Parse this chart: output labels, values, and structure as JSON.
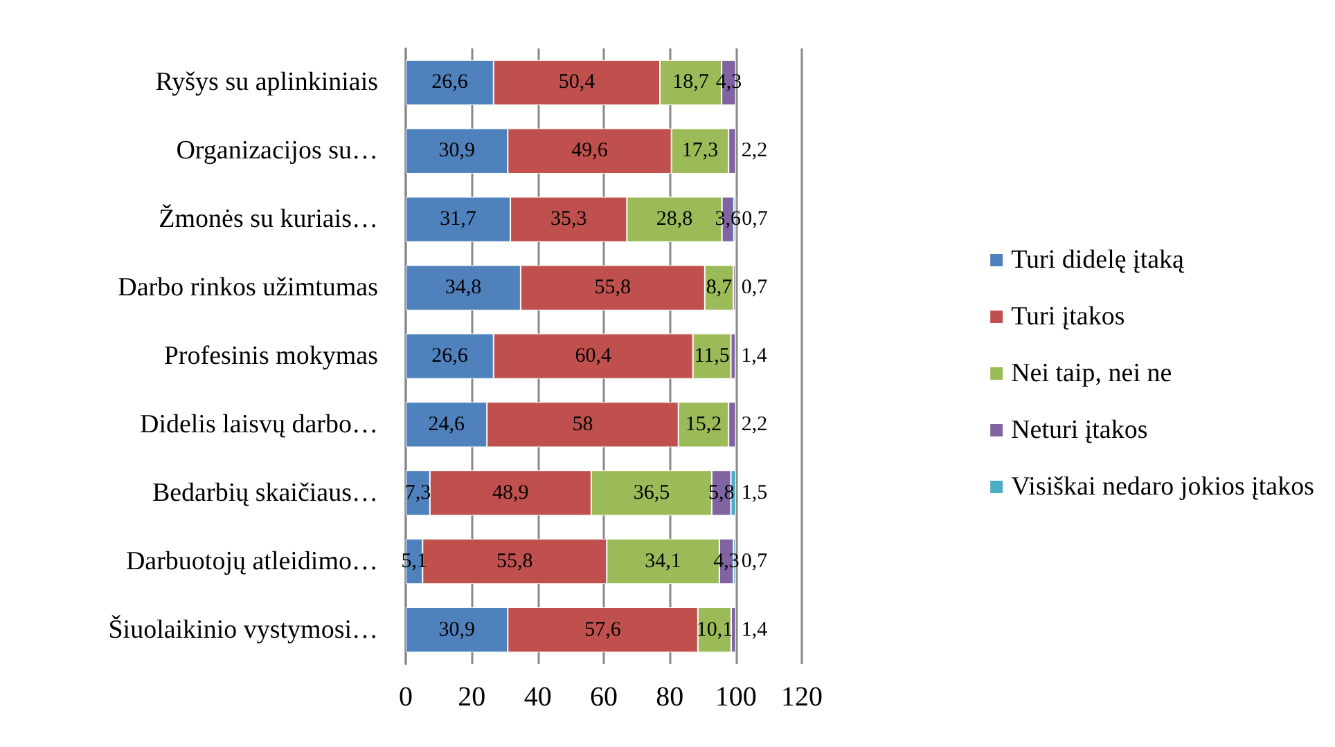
{
  "chart_data": {
    "type": "bar",
    "orientation": "horizontal",
    "stacked": true,
    "categories": [
      "Ryšys su aplinkiniais",
      "Organizacijos su…",
      "Žmonės su kuriais…",
      "Darbo rinkos užimtumas",
      "Profesinis mokymas",
      "Didelis laisvų darbo…",
      "Bedarbių skaičiaus…",
      "Darbuotojų atleidimo…",
      "Šiuolaikinio vystymosi…"
    ],
    "series": [
      {
        "name": "Turi didelę įtaką",
        "color": "#4f81bd",
        "values": [
          26.6,
          30.9,
          31.7,
          34.8,
          26.6,
          24.6,
          7.3,
          5.1,
          30.9
        ],
        "value_labels": [
          "26,6",
          "30,9",
          "31,7",
          "34,8",
          "26,6",
          "24,6",
          "7,3",
          "5,1",
          "30,9"
        ]
      },
      {
        "name": "Turi įtakos",
        "color": "#c0504d",
        "values": [
          50.4,
          49.6,
          35.3,
          55.8,
          60.4,
          58,
          48.9,
          55.8,
          57.6
        ],
        "value_labels": [
          "50,4",
          "49,6",
          "35,3",
          "55,8",
          "60,4",
          "58",
          "48,9",
          "55,8",
          "57,6"
        ]
      },
      {
        "name": "Nei taip, nei ne",
        "color": "#9bbb59",
        "values": [
          18.7,
          17.3,
          28.8,
          8.7,
          11.5,
          15.2,
          36.5,
          34.1,
          10.1
        ],
        "value_labels": [
          "18,7",
          "17,3",
          "28,8",
          "8,7",
          "11,5",
          "15,2",
          "36,5",
          "34,1",
          "10,1"
        ]
      },
      {
        "name": "Neturi įtakos",
        "color": "#8064a2",
        "values": [
          4.3,
          2.2,
          3.6,
          0.7,
          1.4,
          2.2,
          5.8,
          4.3,
          1.4
        ],
        "value_labels": [
          "4,3",
          "2,2",
          "3,6",
          "0,7",
          "1,4",
          "2,2",
          "5,8",
          "4,3",
          "1,4"
        ]
      },
      {
        "name": "Visiškai nedaro jokios įtakos",
        "color": "#4bacc6",
        "values": [
          null,
          null,
          0.7,
          null,
          null,
          null,
          1.5,
          0.7,
          null
        ],
        "value_labels": [
          null,
          null,
          "0,7",
          null,
          null,
          null,
          "1,5",
          "0,7",
          null
        ]
      }
    ],
    "xlim": [
      0,
      120
    ],
    "xticks": [
      0,
      20,
      40,
      60,
      80,
      100,
      120
    ],
    "grid": "x",
    "legend": "right"
  }
}
